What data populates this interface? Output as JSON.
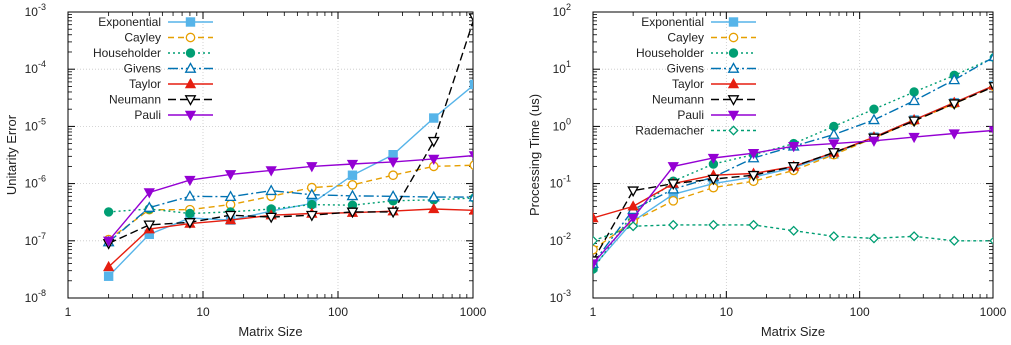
{
  "chart_data": [
    {
      "type": "line",
      "xscale": "log",
      "yscale": "log",
      "xlabel": "Matrix Size",
      "ylabel": "Unitarity Error",
      "xlim": [
        1,
        1000
      ],
      "ylim": [
        1e-08,
        0.001
      ],
      "grid": true,
      "legend": "top-left",
      "x_ticks": [
        {
          "v": 1,
          "label": "1"
        },
        {
          "v": 10,
          "label": "10"
        },
        {
          "v": 100,
          "label": "100"
        },
        {
          "v": 1000,
          "label": "1000"
        }
      ],
      "y_ticks": [
        {
          "v": 1e-08,
          "base": "10",
          "exp": "-8"
        },
        {
          "v": 1e-07,
          "base": "10",
          "exp": "-7"
        },
        {
          "v": 1e-06,
          "base": "10",
          "exp": "-6"
        },
        {
          "v": 1e-05,
          "base": "10",
          "exp": "-5"
        },
        {
          "v": 0.0001,
          "base": "10",
          "exp": "-4"
        },
        {
          "v": 0.001,
          "base": "10",
          "exp": "-3"
        }
      ],
      "series": [
        {
          "name": "Exponential",
          "color": "#56b4e9",
          "marker": "square",
          "dash": "",
          "x": [
            2,
            4,
            8,
            16,
            32,
            64,
            128,
            256,
            512,
            1024
          ],
          "y": [
            2.4e-08,
            1.3e-07,
            2.5e-07,
            2.3e-07,
            3.3e-07,
            4.5e-07,
            1.4e-06,
            3.2e-06,
            1.4e-05,
            5.4e-05
          ]
        },
        {
          "name": "Cayley",
          "color": "#e69f00",
          "marker": "circle-open",
          "dash": "6,4",
          "x": [
            2,
            4,
            8,
            16,
            32,
            64,
            128,
            256,
            512,
            1024
          ],
          "y": [
            1.05e-07,
            3.5e-07,
            3.5e-07,
            4.3e-07,
            6e-07,
            8.5e-07,
            9.5e-07,
            1.4e-06,
            2e-06,
            2.1e-06
          ]
        },
        {
          "name": "Householder",
          "color": "#009e73",
          "marker": "circle",
          "dash": "2,3",
          "x": [
            2,
            4,
            8,
            16,
            32,
            64,
            128,
            256,
            512,
            1024
          ],
          "y": [
            3.2e-07,
            3.6e-07,
            3e-07,
            3.2e-07,
            3.6e-07,
            4.3e-07,
            4.2e-07,
            5e-07,
            5.2e-07,
            5.6e-07
          ]
        },
        {
          "name": "Givens",
          "color": "#0072b2",
          "marker": "triangle-open",
          "dash": "10,3,2,3",
          "x": [
            2,
            4,
            8,
            16,
            32,
            64,
            128,
            256,
            512,
            1024
          ],
          "y": [
            9.5e-08,
            3.8e-07,
            6e-07,
            5.9e-07,
            7.5e-07,
            6.4e-07,
            6.1e-07,
            6e-07,
            5.8e-07,
            5.8e-07
          ]
        },
        {
          "name": "Taylor",
          "color": "#e51e10",
          "marker": "triangle",
          "dash": "",
          "x": [
            2,
            4,
            8,
            16,
            32,
            64,
            128,
            256,
            512,
            1024
          ],
          "y": [
            3.5e-08,
            1.6e-07,
            2e-07,
            2.3e-07,
            2.8e-07,
            3e-07,
            3.1e-07,
            3.3e-07,
            3.6e-07,
            3.4e-07
          ]
        },
        {
          "name": "Neumann",
          "color": "#000000",
          "marker": "triangle-down-open",
          "dash": "8,4",
          "x": [
            2,
            4,
            8,
            16,
            32,
            64,
            128,
            256,
            512,
            1024
          ],
          "y": [
            9e-08,
            1.9e-07,
            2.1e-07,
            2.8e-07,
            2.6e-07,
            2.8e-07,
            3.2e-07,
            3.2e-07,
            5.5e-06,
            0.0008
          ]
        },
        {
          "name": "Pauli",
          "color": "#9400d3",
          "marker": "triangle-down",
          "dash": "",
          "x": [
            2,
            4,
            8,
            16,
            32,
            64,
            128,
            256,
            512,
            1024
          ],
          "y": [
            1e-07,
            7e-07,
            1.15e-06,
            1.45e-06,
            1.7e-06,
            2e-06,
            2.2e-06,
            2.4e-06,
            2.7e-06,
            3.1e-06
          ]
        }
      ]
    },
    {
      "type": "line",
      "xscale": "log",
      "yscale": "log",
      "xlabel": "Matrix Size",
      "ylabel": "Processing Time (us)",
      "xlim": [
        1,
        1000
      ],
      "ylim": [
        0.001,
        100.0
      ],
      "grid": true,
      "legend": "top-left",
      "x_ticks": [
        {
          "v": 1,
          "label": "1"
        },
        {
          "v": 10,
          "label": "10"
        },
        {
          "v": 100,
          "label": "100"
        },
        {
          "v": 1000,
          "label": "1000"
        }
      ],
      "y_ticks": [
        {
          "v": 0.001,
          "base": "10",
          "exp": "-3"
        },
        {
          "v": 0.01,
          "base": "10",
          "exp": "-2"
        },
        {
          "v": 0.1,
          "base": "10",
          "exp": "-1"
        },
        {
          "v": 1,
          "base": "10",
          "exp": "0"
        },
        {
          "v": 10,
          "base": "10",
          "exp": "1"
        },
        {
          "v": 100,
          "base": "10",
          "exp": "2"
        }
      ],
      "series": [
        {
          "name": "Exponential",
          "color": "#56b4e9",
          "marker": "square",
          "dash": "",
          "x": [
            1,
            2,
            4,
            8,
            16,
            32,
            64,
            128,
            256,
            512,
            1024
          ],
          "y": [
            0.0035,
            0.022,
            0.065,
            0.1,
            0.13,
            0.19,
            0.33,
            0.65,
            1.3,
            2.6,
            5.2
          ]
        },
        {
          "name": "Cayley",
          "color": "#e69f00",
          "marker": "circle-open",
          "dash": "6,4",
          "x": [
            1,
            2,
            4,
            8,
            16,
            32,
            64,
            128,
            256,
            512,
            1024
          ],
          "y": [
            0.007,
            0.022,
            0.05,
            0.085,
            0.11,
            0.17,
            0.32,
            0.63,
            1.25,
            2.5,
            5.0
          ]
        },
        {
          "name": "Householder",
          "color": "#009e73",
          "marker": "circle",
          "dash": "2,3",
          "x": [
            1,
            2,
            4,
            8,
            16,
            32,
            64,
            128,
            256,
            512,
            1024
          ],
          "y": [
            0.0032,
            0.03,
            0.11,
            0.22,
            0.32,
            0.5,
            1.0,
            2.0,
            4.0,
            7.8,
            16
          ]
        },
        {
          "name": "Givens",
          "color": "#0072b2",
          "marker": "triangle-open",
          "dash": "10,3,2,3",
          "x": [
            1,
            2,
            4,
            8,
            16,
            32,
            64,
            128,
            256,
            512,
            1024
          ],
          "y": [
            0.004,
            0.035,
            0.08,
            0.13,
            0.28,
            0.45,
            0.72,
            1.3,
            2.8,
            6.5,
            16.5
          ]
        },
        {
          "name": "Taylor",
          "color": "#e51e10",
          "marker": "triangle",
          "dash": "",
          "x": [
            1,
            2,
            4,
            8,
            16,
            32,
            64,
            128,
            256,
            512,
            1024
          ],
          "y": [
            0.025,
            0.04,
            0.1,
            0.14,
            0.15,
            0.2,
            0.35,
            0.65,
            1.3,
            2.6,
            5.2
          ]
        },
        {
          "name": "Neumann",
          "color": "#000000",
          "marker": "triangle-down-open",
          "dash": "8,4",
          "x": [
            1,
            2,
            4,
            8,
            16,
            32,
            64,
            128,
            256,
            512,
            1024
          ],
          "y": [
            0.0045,
            0.075,
            0.1,
            0.12,
            0.14,
            0.2,
            0.35,
            0.63,
            1.25,
            2.5,
            5.0
          ]
        },
        {
          "name": "Pauli",
          "color": "#9400d3",
          "marker": "triangle-down",
          "dash": "",
          "x": [
            1,
            2,
            4,
            8,
            16,
            32,
            64,
            128,
            256,
            512,
            1024
          ],
          "y": [
            0.004,
            0.025,
            0.2,
            0.28,
            0.34,
            0.45,
            0.5,
            0.56,
            0.65,
            0.75,
            0.85
          ]
        },
        {
          "name": "Rademacher",
          "color": "#009e73",
          "marker": "diamond-open",
          "dash": "3,3",
          "x": [
            1,
            2,
            4,
            8,
            16,
            32,
            64,
            128,
            256,
            512,
            1024
          ],
          "y": [
            0.01,
            0.018,
            0.019,
            0.019,
            0.019,
            0.015,
            0.012,
            0.011,
            0.012,
            0.01,
            0.01
          ]
        }
      ]
    }
  ]
}
